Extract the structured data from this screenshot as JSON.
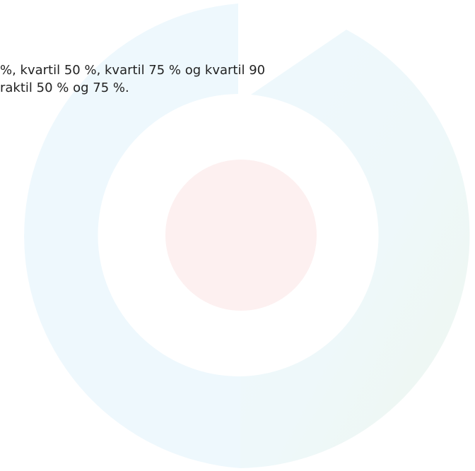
{
  "text_lines": [
    "%, kvartil 50 %, kvartil 75 % og kvartil 90",
    "raktil 50 % og 75 %."
  ]
}
